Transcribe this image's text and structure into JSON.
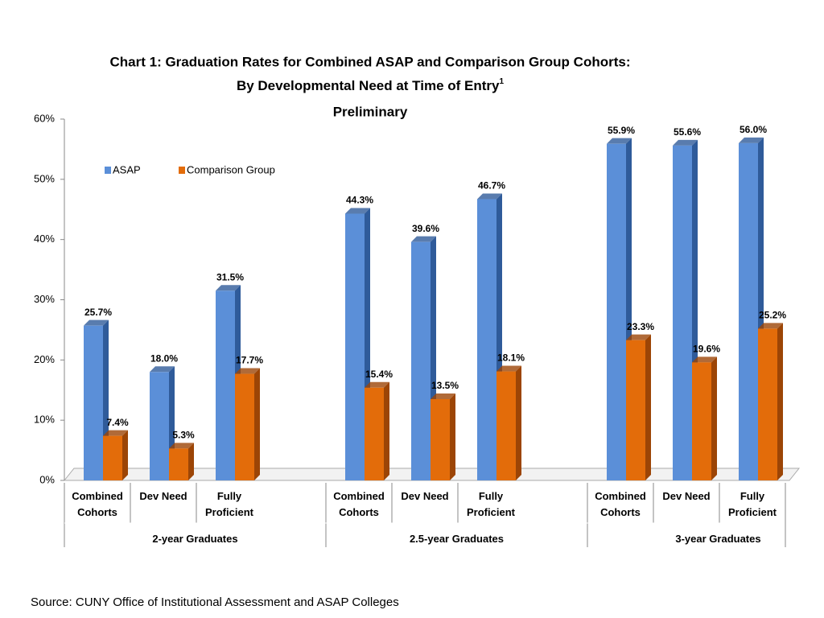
{
  "chart_data": {
    "type": "bar3d",
    "title": [
      "Chart 1: Graduation Rates for Combined ASAP and Comparison Group Cohorts:",
      "By Developmental Need at Time of Entry",
      "Preliminary"
    ],
    "title_footnote_mark": "1",
    "groups": [
      {
        "name": "2-year Graduates",
        "categories": [
          "Combined Cohorts",
          "Dev Need",
          "Fully Proficient"
        ]
      },
      {
        "name": "2.5-year Graduates",
        "categories": [
          "Combined Cohorts",
          "Dev Need",
          "Fully Proficient"
        ]
      },
      {
        "name": "3-year Graduates",
        "categories": [
          "Combined Cohorts",
          "Dev Need",
          "Fully Proficient"
        ]
      }
    ],
    "series": [
      {
        "name": "ASAP",
        "color": "#5b8fd8",
        "side_color": "#2f5b9a",
        "values": [
          [
            25.7,
            18.0,
            31.5
          ],
          [
            44.3,
            39.6,
            46.7
          ],
          [
            55.9,
            55.6,
            56.0
          ]
        ],
        "value_labels": [
          [
            "25.7%",
            "18.0%",
            "31.5%"
          ],
          [
            "44.3%",
            "39.6%",
            "46.7%"
          ],
          [
            "55.9%",
            "55.6%",
            "56.0%"
          ]
        ]
      },
      {
        "name": "Comparison Group",
        "color": "#e36c0a",
        "side_color": "#9c4506",
        "values": [
          [
            7.4,
            5.3,
            17.7
          ],
          [
            15.4,
            13.5,
            18.1
          ],
          [
            23.3,
            19.6,
            25.2
          ]
        ],
        "value_labels": [
          [
            "7.4%",
            "5.3%",
            "17.7%"
          ],
          [
            "15.4%",
            "13.5%",
            "18.1%"
          ],
          [
            "23.3%",
            "19.6%",
            "25.2%"
          ]
        ]
      }
    ],
    "ylim": [
      0,
      60
    ],
    "yticks": [
      {
        "value": 0,
        "label": "0%"
      },
      {
        "value": 10,
        "label": "10%"
      },
      {
        "value": 20,
        "label": "20%"
      },
      {
        "value": 30,
        "label": "30%"
      },
      {
        "value": 40,
        "label": "40%"
      },
      {
        "value": 50,
        "label": "50%"
      },
      {
        "value": 60,
        "label": "60%"
      }
    ],
    "grid": false,
    "legend": "top-left"
  },
  "source": "Source: CUNY Office of Institutional Assessment and ASAP Colleges"
}
